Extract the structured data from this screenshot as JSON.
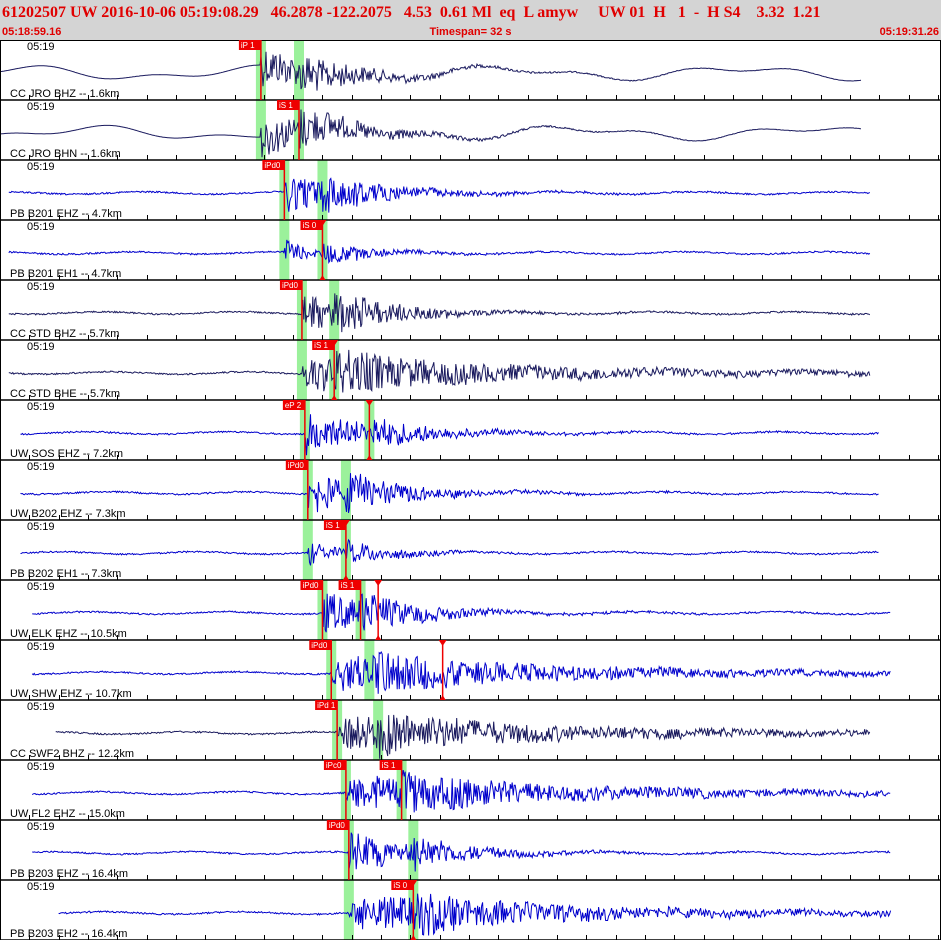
{
  "header": {
    "event_line": "61202507 UW 2016-10-06 05:19:08.29   46.2878 -122.2075   4.53  0.61 Ml  eq  L amyw     UW 01  H   1  -  H S4    3.32  1.21",
    "start_time": "05:18:59.16",
    "timespan": "Timespan=  32 s",
    "end_time": "05:19:31.26"
  },
  "colors": {
    "background": "#ffffff",
    "header_bg": "#d4d4d4",
    "header_text": "#e00000",
    "trace_dark": "#1a1a5e",
    "trace_blue": "#0000cc",
    "pick": "#ee0000",
    "window": "#90f090",
    "label": "#000000"
  },
  "chart_data": {
    "type": "seismogram",
    "xlim_s": [
      0,
      32.1
    ],
    "tick_step_s": 1,
    "traces": [
      {
        "label": "CC JRO BHZ -- 1.6km",
        "time": "05:19",
        "color": "dark",
        "start": 0.0,
        "end": 29.4,
        "p": 8.9,
        "s": 10.2,
        "env": "lowfreq",
        "picks": [
          {
            "text": "iP 1",
            "t": 8.9,
            "mk": ""
          }
        ]
      },
      {
        "label": "CC JRO BHN -- 1.6km",
        "time": "05:19",
        "color": "dark",
        "start": 0.0,
        "end": 29.4,
        "p": 8.9,
        "s": 10.2,
        "env": "lowfreq",
        "picks": [
          {
            "text": "iS 1",
            "t": 10.2,
            "mk": ""
          }
        ]
      },
      {
        "label": "PB B201 EHZ -- 4.7km",
        "time": "05:19",
        "color": "blue",
        "start": 0.3,
        "end": 29.7,
        "p": 9.7,
        "s": 11.0,
        "env": "med",
        "picks": [
          {
            "text": "iPd0",
            "t": 9.7,
            "mk": ""
          }
        ]
      },
      {
        "label": "PB B201 EH1 -- 4.7km",
        "time": "05:19",
        "color": "blue",
        "start": 0.3,
        "end": 29.7,
        "p": 9.7,
        "s": 11.0,
        "env": "small",
        "picks": [
          {
            "text": "iS 0",
            "t": 11.0,
            "mk": "down"
          }
        ]
      },
      {
        "label": "CC STD BHZ -- 5.7km",
        "time": "05:19",
        "color": "dark",
        "start": 0.3,
        "end": 29.7,
        "p": 10.3,
        "s": 11.4,
        "env": "med",
        "picks": [
          {
            "text": "iPd0",
            "t": 10.3,
            "mk": ""
          }
        ]
      },
      {
        "label": "CC STD BHE -- 5.7km",
        "time": "05:19",
        "color": "dark",
        "start": 0.3,
        "end": 29.7,
        "p": 10.3,
        "s": 11.4,
        "env": "long",
        "picks": [
          {
            "text": "iS 1",
            "t": 11.4,
            "mk": "down"
          }
        ]
      },
      {
        "label": "UW SOS EHZ -- 7.2km",
        "time": "05:19",
        "color": "blue",
        "start": 0.7,
        "end": 30.0,
        "p": 10.4,
        "s": 12.6,
        "env": "med",
        "picks": [
          {
            "text": "eP 2",
            "t": 10.4,
            "mk": ""
          },
          {
            "text": "",
            "t": 12.6,
            "mk": "down"
          }
        ]
      },
      {
        "label": "UW B202 EHZ -- 7.3km",
        "time": "05:19",
        "color": "blue",
        "start": 0.7,
        "end": 30.0,
        "p": 10.5,
        "s": 11.8,
        "env": "med",
        "picks": [
          {
            "text": "iPd0",
            "t": 10.5,
            "mk": ""
          }
        ]
      },
      {
        "label": "PB B202 EH1 -- 7.3km",
        "time": "05:19",
        "color": "blue",
        "start": 0.7,
        "end": 30.0,
        "p": 10.5,
        "s": 11.8,
        "env": "small",
        "picks": [
          {
            "text": "iS 1",
            "t": 11.8,
            "mk": "down"
          }
        ]
      },
      {
        "label": "UW ELK EHZ -- 10.5km",
        "time": "05:19",
        "color": "blue",
        "start": 1.1,
        "end": 30.4,
        "p": 11.0,
        "s": 12.3,
        "env": "med",
        "picks": [
          {
            "text": "iPd0",
            "t": 11.0,
            "mk": ""
          },
          {
            "text": "iS 1",
            "t": 12.3,
            "mk": ""
          },
          {
            "text": "",
            "t": 12.9,
            "mk": "down"
          }
        ]
      },
      {
        "label": "UW SHW EHZ -- 10.7km",
        "time": "05:19",
        "color": "blue",
        "start": 1.1,
        "end": 30.4,
        "p": 11.3,
        "s": 12.6,
        "env": "long",
        "picks": [
          {
            "text": "iPd0",
            "t": 11.3,
            "mk": ""
          },
          {
            "text": "",
            "t": 15.1,
            "mk": "down"
          }
        ]
      },
      {
        "label": "CC SWF2 BHZ -- 12.2km",
        "time": "05:19",
        "color": "dark",
        "start": 1.9,
        "end": 29.7,
        "p": 11.5,
        "s": 12.9,
        "env": "long",
        "picks": [
          {
            "text": "iPd 1",
            "t": 11.5,
            "mk": ""
          }
        ]
      },
      {
        "label": "UW FL2 EHZ -- 15.0km",
        "time": "05:19",
        "color": "blue",
        "start": 1.1,
        "end": 30.4,
        "p": 11.8,
        "s": 13.7,
        "env": "long",
        "picks": [
          {
            "text": "iPc0",
            "t": 11.8,
            "mk": ""
          },
          {
            "text": "iS 1",
            "t": 13.7,
            "mk": ""
          }
        ]
      },
      {
        "label": "PB B203 EHZ -- 16.4km",
        "time": "05:19",
        "color": "blue",
        "start": 1.1,
        "end": 30.4,
        "p": 11.9,
        "s": 14.1,
        "env": "med",
        "picks": [
          {
            "text": "iPd0",
            "t": 11.9,
            "mk": ""
          }
        ]
      },
      {
        "label": "PB B203 EH2 -- 16.4km",
        "time": "05:19",
        "color": "blue",
        "start": 2.0,
        "end": 30.4,
        "p": 11.9,
        "s": 14.1,
        "env": "long",
        "picks": [
          {
            "text": "iS 0",
            "t": 14.1,
            "mk": "down"
          }
        ]
      }
    ]
  }
}
